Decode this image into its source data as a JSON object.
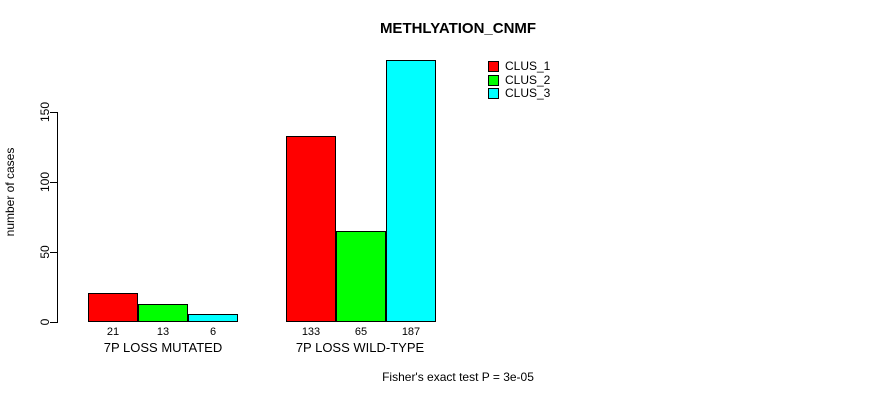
{
  "chart_data": {
    "type": "bar",
    "title": "METHLYATION_CNMF",
    "ylabel": "number of cases",
    "yticks": [
      0,
      50,
      100,
      150
    ],
    "ylim": [
      0,
      187
    ],
    "grid": false,
    "legend_position": "top-right",
    "categories": [
      "7P LOSS MUTATED",
      "7P LOSS WILD-TYPE"
    ],
    "series": [
      {
        "name": "CLUS_1",
        "color": "#FF0000",
        "values": [
          21,
          133
        ]
      },
      {
        "name": "CLUS_2",
        "color": "#00FF00",
        "values": [
          13,
          65
        ]
      },
      {
        "name": "CLUS_3",
        "color": "#00FFFF",
        "values": [
          6,
          187
        ]
      }
    ],
    "bar_value_labels": [
      [
        "21",
        "13",
        "6"
      ],
      [
        "133",
        "65",
        "187"
      ]
    ],
    "annotation": "Fisher's exact test P = 3e-05"
  }
}
